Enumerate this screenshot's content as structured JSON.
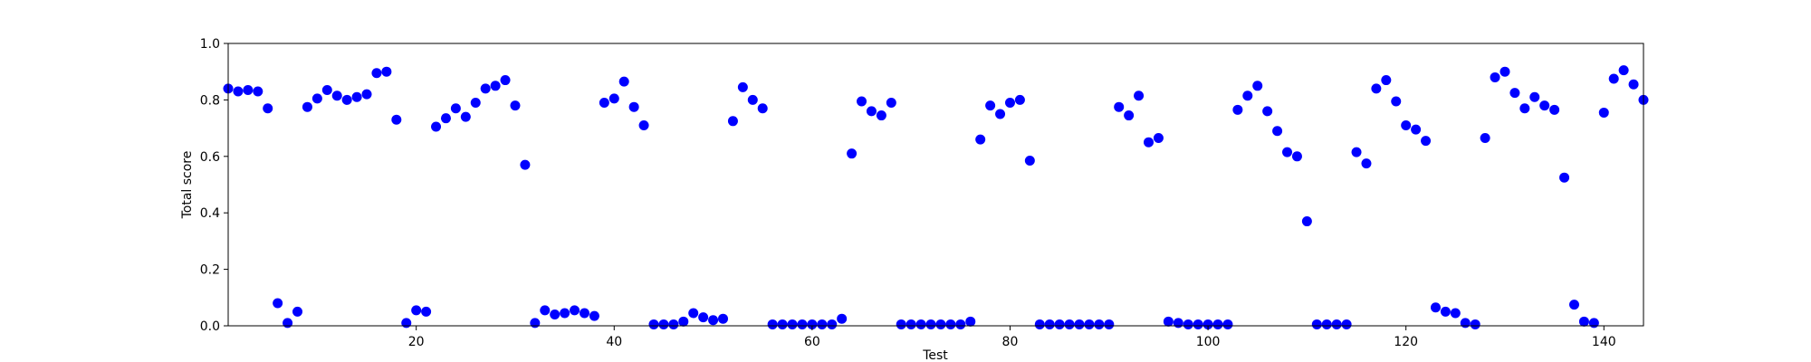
{
  "chart_data": {
    "type": "scatter",
    "title": "",
    "xlabel": "Test",
    "ylabel": "Total score",
    "xlim": [
      1,
      144
    ],
    "ylim": [
      0,
      1
    ],
    "xticks": [
      20,
      40,
      60,
      80,
      100,
      120,
      140
    ],
    "yticks": [
      0.0,
      0.2,
      0.4,
      0.6,
      0.8,
      1.0
    ],
    "xtick_labels": [
      "20",
      "40",
      "60",
      "80",
      "100",
      "120",
      "140"
    ],
    "ytick_labels": [
      "0.0",
      "0.2",
      "0.4",
      "0.6",
      "0.8",
      "1.0"
    ],
    "grid": false,
    "marker_color": "#0000ff",
    "x": [
      1,
      2,
      3,
      4,
      5,
      6,
      7,
      8,
      9,
      10,
      11,
      12,
      13,
      14,
      15,
      16,
      17,
      18,
      19,
      20,
      21,
      22,
      23,
      24,
      25,
      26,
      27,
      28,
      29,
      30,
      31,
      32,
      33,
      34,
      35,
      36,
      37,
      38,
      39,
      40,
      41,
      42,
      43,
      44,
      45,
      46,
      47,
      48,
      49,
      50,
      51,
      52,
      53,
      54,
      55,
      56,
      57,
      58,
      59,
      60,
      61,
      62,
      63,
      64,
      65,
      66,
      67,
      68,
      69,
      70,
      71,
      72,
      73,
      74,
      75,
      76,
      77,
      78,
      79,
      80,
      81,
      82,
      83,
      84,
      85,
      86,
      87,
      88,
      89,
      90,
      91,
      92,
      93,
      94,
      95,
      96,
      97,
      98,
      99,
      100,
      101,
      102,
      103,
      104,
      105,
      106,
      107,
      108,
      109,
      110,
      111,
      112,
      113,
      114,
      115,
      116,
      117,
      118,
      119,
      120,
      121,
      122,
      123,
      124,
      125,
      126,
      127,
      128,
      129,
      130,
      131,
      132,
      133,
      134,
      135,
      136,
      137,
      138,
      139,
      140,
      141,
      142,
      143,
      144
    ],
    "y": [
      0.84,
      0.83,
      0.835,
      0.83,
      0.77,
      0.08,
      0.01,
      0.05,
      0.775,
      0.805,
      0.835,
      0.815,
      0.8,
      0.81,
      0.82,
      0.895,
      0.9,
      0.73,
      0.01,
      0.055,
      0.05,
      0.705,
      0.735,
      0.77,
      0.74,
      0.79,
      0.84,
      0.85,
      0.87,
      0.78,
      0.57,
      0.01,
      0.055,
      0.04,
      0.045,
      0.055,
      0.045,
      0.035,
      0.79,
      0.805,
      0.865,
      0.775,
      0.71,
      0.005,
      0.005,
      0.005,
      0.015,
      0.045,
      0.03,
      0.02,
      0.025,
      0.725,
      0.845,
      0.8,
      0.77,
      0.005,
      0.005,
      0.005,
      0.005,
      0.005,
      0.005,
      0.005,
      0.025,
      0.61,
      0.795,
      0.76,
      0.745,
      0.79,
      0.005,
      0.005,
      0.005,
      0.005,
      0.005,
      0.005,
      0.005,
      0.015,
      0.66,
      0.78,
      0.75,
      0.79,
      0.8,
      0.585,
      0.005,
      0.005,
      0.005,
      0.005,
      0.005,
      0.005,
      0.005,
      0.005,
      0.775,
      0.745,
      0.815,
      0.65,
      0.665,
      0.015,
      0.01,
      0.005,
      0.005,
      0.005,
      0.005,
      0.005,
      0.765,
      0.815,
      0.85,
      0.76,
      0.69,
      0.615,
      0.6,
      0.37,
      0.005,
      0.005,
      0.005,
      0.005,
      0.615,
      0.575,
      0.84,
      0.87,
      0.795,
      0.71,
      0.695,
      0.655,
      0.065,
      0.05,
      0.045,
      0.01,
      0.005,
      0.665,
      0.88,
      0.9,
      0.825,
      0.77,
      0.81,
      0.78,
      0.765,
      0.525,
      0.075,
      0.015,
      0.01,
      0.755,
      0.875,
      0.905,
      0.855,
      0.8
    ]
  }
}
